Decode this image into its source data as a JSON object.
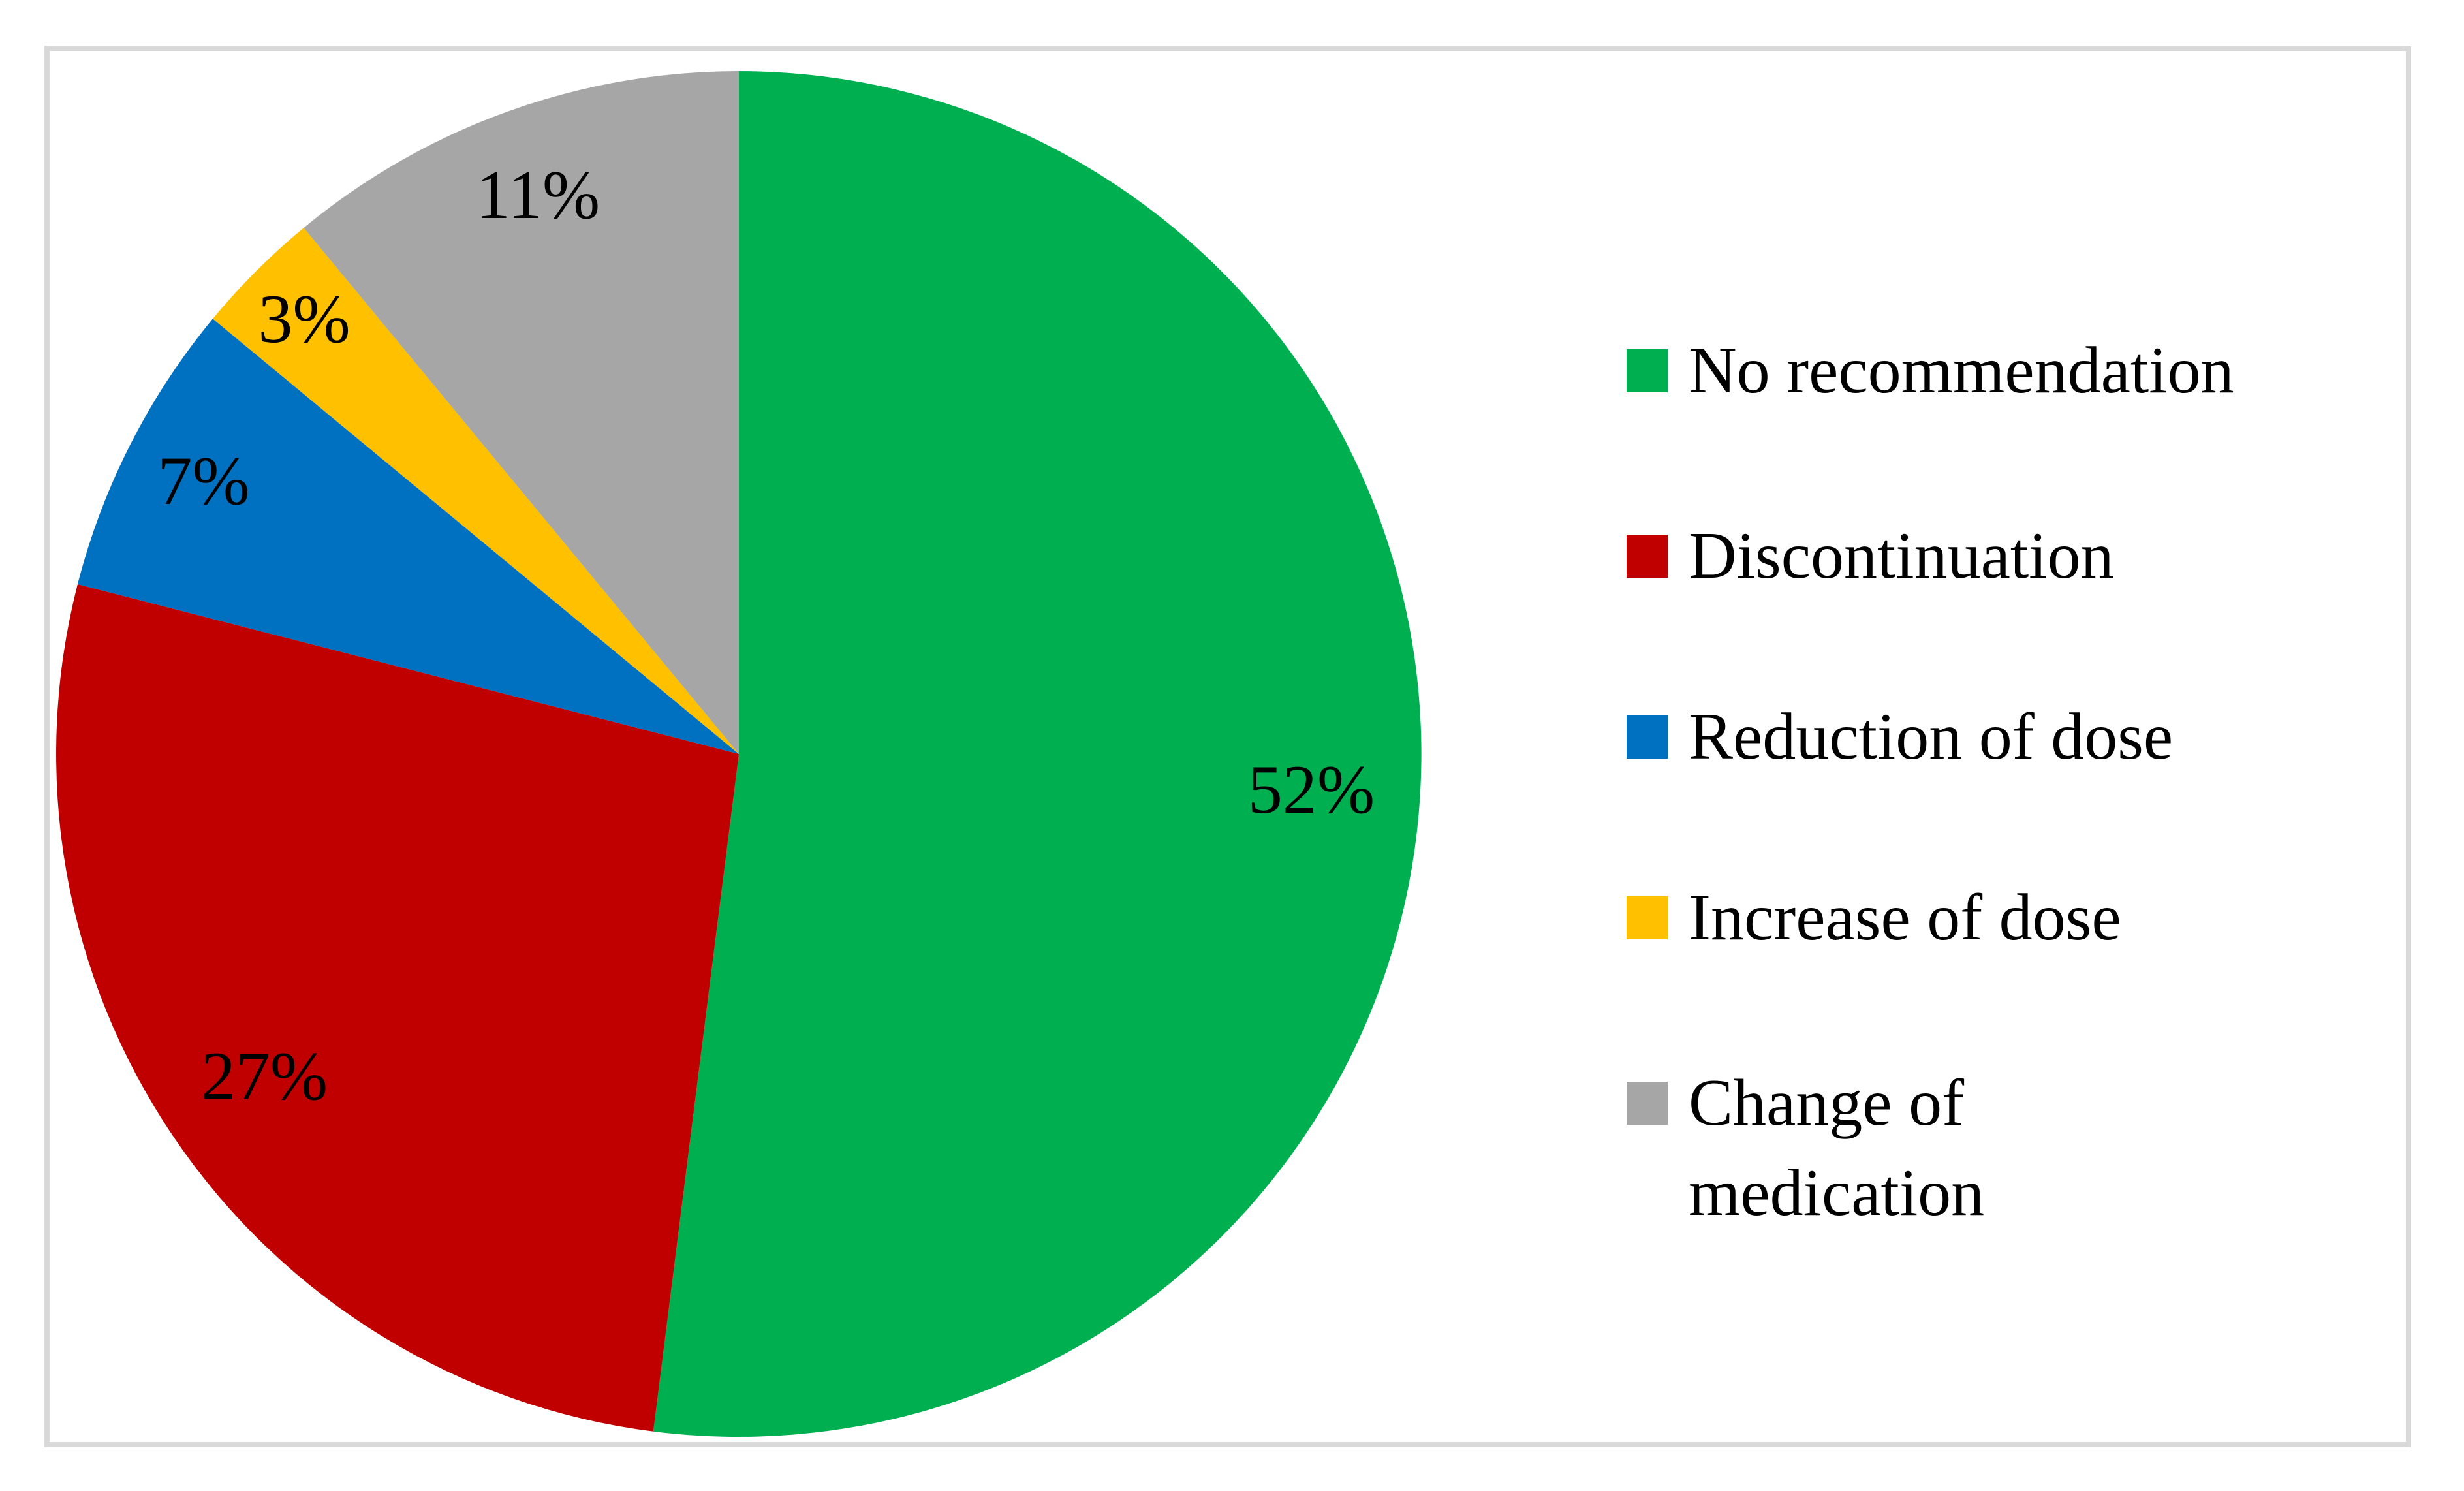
{
  "figure": {
    "background_color": "#FFFFFF",
    "frame_color": "#D9D9D9",
    "text_color": "#000000"
  },
  "chart_data": {
    "type": "pie",
    "title": "",
    "categories": [
      "No recommendation",
      "Discontinuation",
      "Reduction of dose",
      "Increase of dose",
      "Change of medication"
    ],
    "values": [
      52,
      27,
      7,
      3,
      11
    ],
    "unit": "%",
    "start_angle_deg": 0,
    "direction": "clockwise",
    "legend_position": "right",
    "grid": false,
    "slices": [
      {
        "label": "No recommendation",
        "value": 52,
        "display": "52%",
        "color": "#00B050",
        "legend_lines": [
          "No recommendation"
        ]
      },
      {
        "label": "Discontinuation",
        "value": 27,
        "display": "27%",
        "color": "#C00000",
        "legend_lines": [
          "Discontinuation"
        ]
      },
      {
        "label": "Reduction of dose",
        "value": 7,
        "display": "7%",
        "color": "#0070C0",
        "legend_lines": [
          "Reduction of dose"
        ]
      },
      {
        "label": "Increase of dose",
        "value": 3,
        "display": "3%",
        "color": "#FFC000",
        "legend_lines": [
          "Increase of dose"
        ]
      },
      {
        "label": "Change of medication",
        "value": 11,
        "display": "11%",
        "color": "#A6A6A6",
        "legend_lines": [
          "Change of",
          "medication"
        ]
      }
    ]
  }
}
